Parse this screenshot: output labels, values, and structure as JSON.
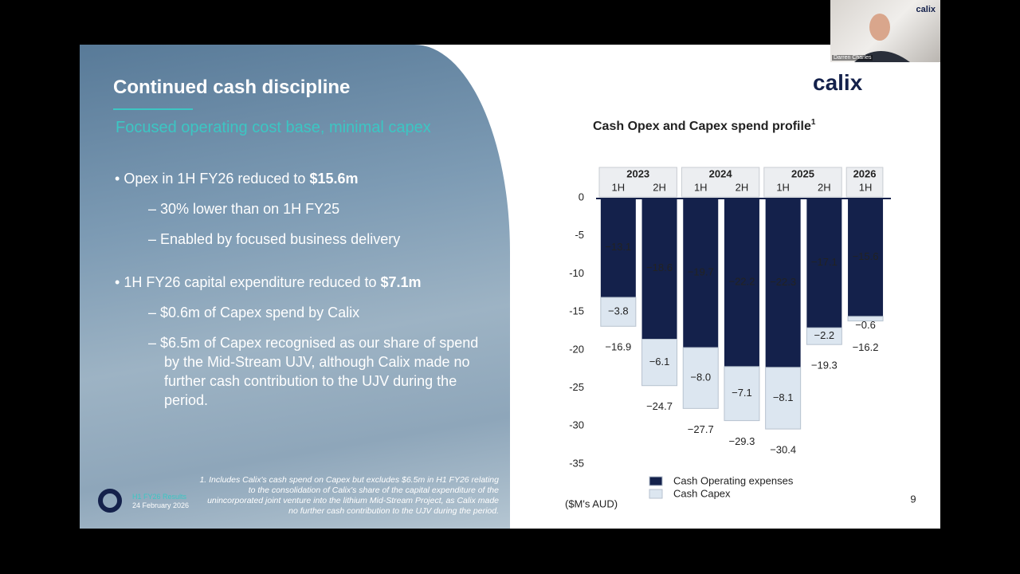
{
  "video": {
    "name": "Darren Charles",
    "logo": "calix"
  },
  "slide": {
    "title": "Continued cash discipline",
    "subtitle": "Focused operating cost base, minimal capex",
    "logo": "calix",
    "bullets": [
      {
        "text": "Opex in 1H FY26 reduced to ",
        "bold": "$15.6m",
        "sub": [
          "30% lower than on 1H FY25",
          "Enabled by focused business delivery"
        ]
      },
      {
        "text": "1H FY26 capital expenditure reduced to ",
        "bold": "$7.1m",
        "sub": [
          "$0.6m of Capex spend by Calix",
          "$6.5m of Capex recognised as our share of spend by the Mid-Stream UJV, although Calix made no further cash contribution to the UJV during the period."
        ]
      }
    ],
    "footnote": "1.  Includes Calix's cash spend on Capex but excludes $6.5m in H1 FY26 relating to the consolidation of Calix's share of the capital expenditure of the unincorporated joint venture into the lithium Mid-Stream Project, as Calix made no further cash contribution to the UJV during the period.",
    "footer_event": "H1 FY26 Results",
    "footer_date": "24 February 2026",
    "page_number": "9"
  },
  "chart_data": {
    "type": "stacked-bar",
    "title": "Cash Opex and Capex spend profile",
    "title_note": "1",
    "unit_label": "($M's AUD)",
    "groups": [
      {
        "name": "2023",
        "categories": [
          "1H",
          "2H"
        ]
      },
      {
        "name": "2024",
        "categories": [
          "1H",
          "2H"
        ]
      },
      {
        "name": "2025",
        "categories": [
          "1H",
          "2H"
        ]
      },
      {
        "name": "2026",
        "categories": [
          "1H"
        ]
      }
    ],
    "series": [
      {
        "name": "Cash Operating expenses",
        "color": "#14214b",
        "values": [
          -13.1,
          -18.6,
          -19.7,
          -22.2,
          -22.3,
          -17.1,
          -15.6
        ],
        "value_labels": [
          "−13.1",
          "−18.6",
          "−19.7",
          "−22.2",
          "−22.3",
          "−17.1",
          "−15.6"
        ]
      },
      {
        "name": "Cash Capex",
        "color": "#dce6f0",
        "values": [
          -3.8,
          -6.1,
          -8.0,
          -7.1,
          -8.1,
          -2.2,
          -0.6
        ],
        "value_labels": [
          "−3.8",
          "−6.1",
          "−8.0",
          "−7.1",
          "−8.1",
          "−2.2",
          "−0.6"
        ]
      }
    ],
    "totals": [
      -16.9,
      -24.7,
      -27.7,
      -29.3,
      -30.4,
      -19.3,
      -16.2
    ],
    "total_labels": [
      "−16.9",
      "−24.7",
      "−27.7",
      "−29.3",
      "−30.4",
      "−19.3",
      "−16.2"
    ],
    "ylim": [
      -35,
      0
    ],
    "yticks": [
      0,
      -5,
      -10,
      -15,
      -20,
      -25,
      -30,
      -35
    ]
  }
}
